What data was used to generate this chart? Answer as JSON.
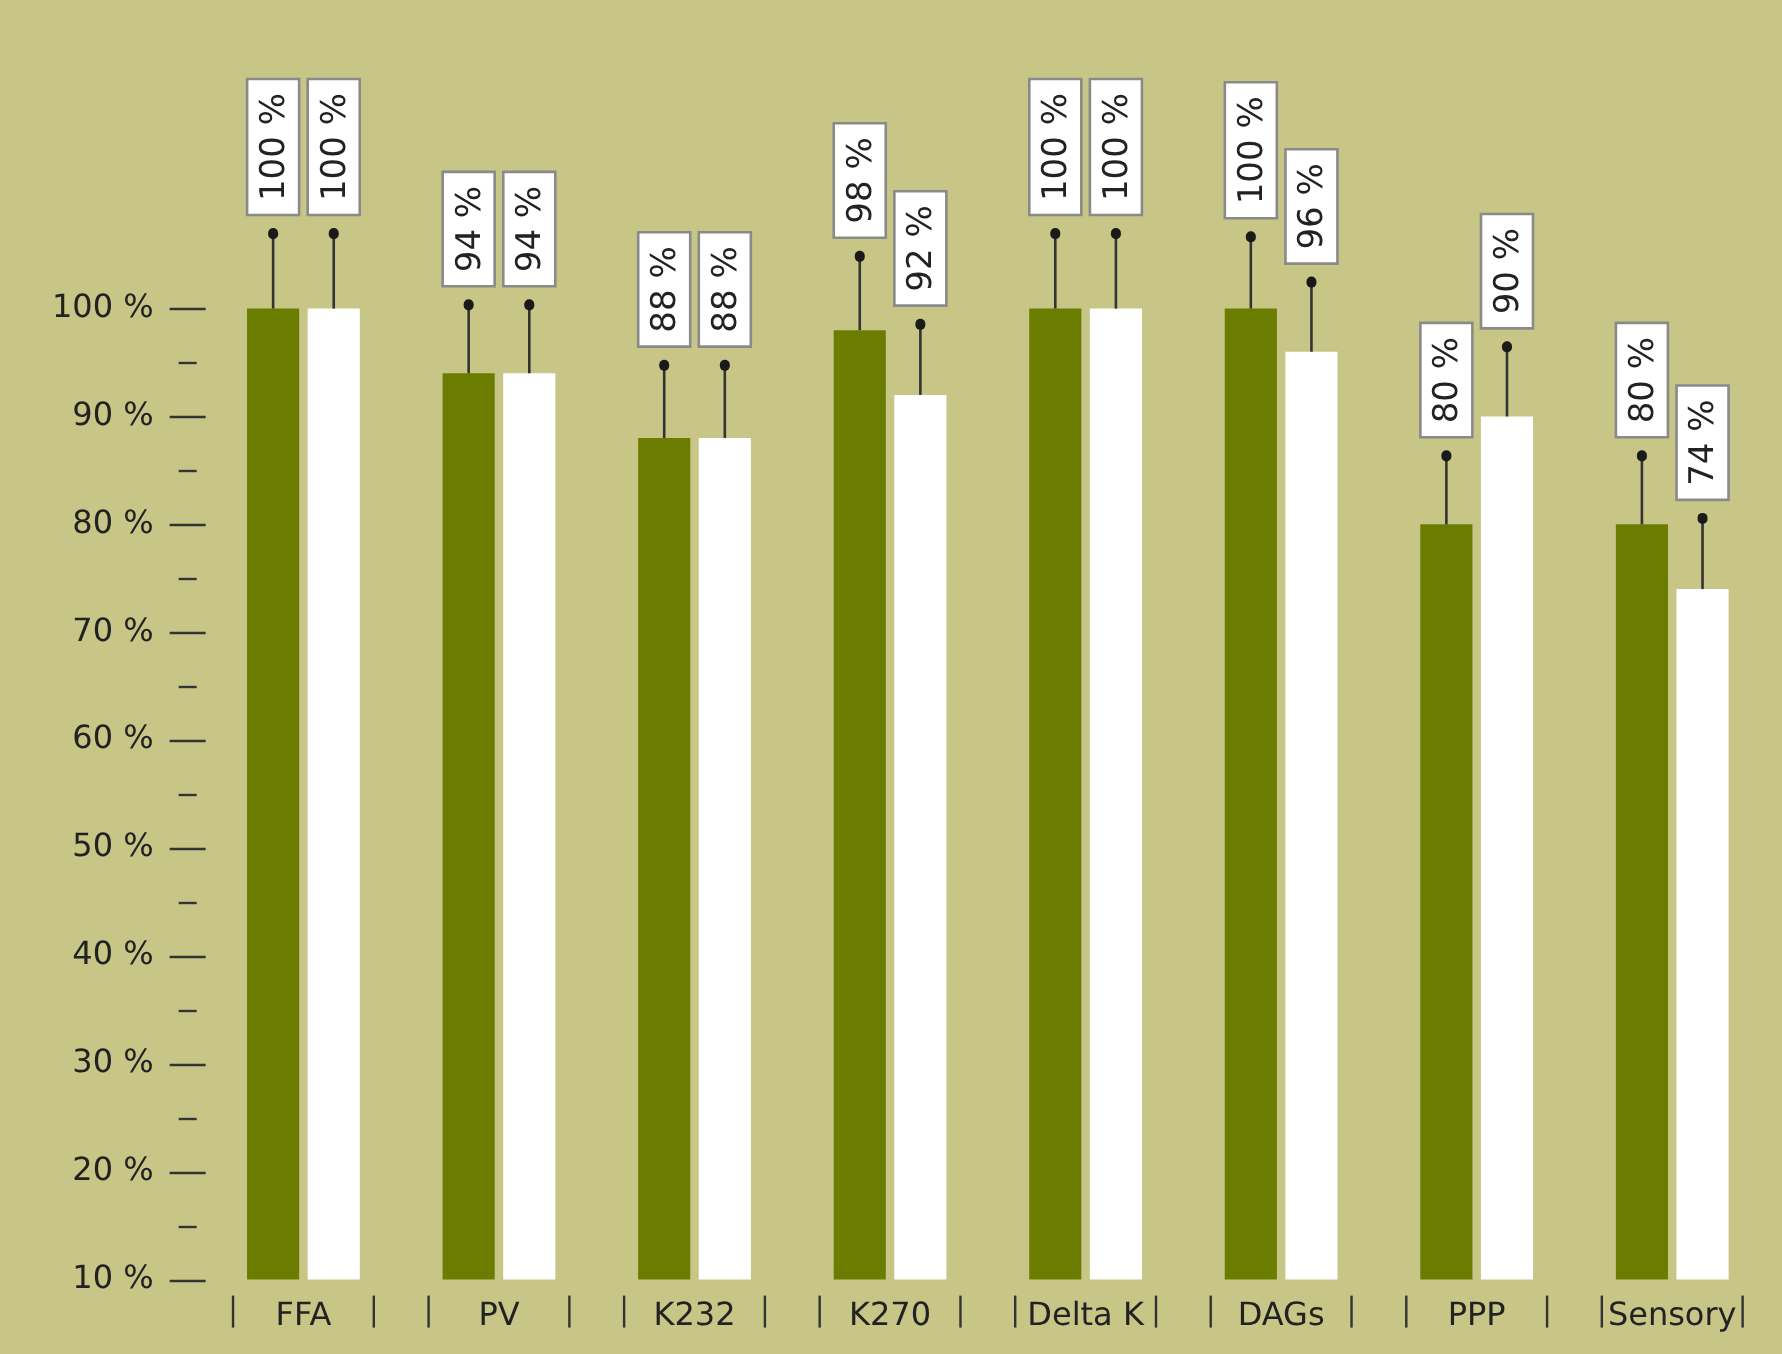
{
  "chart_data": {
    "type": "bar",
    "categories": [
      "FFA",
      "PV",
      "K232",
      "K270",
      "Delta K",
      "DAGs",
      "PPP",
      "Sensory"
    ],
    "series": [
      {
        "color": "#6b7d00",
        "values": [
          100,
          94,
          88,
          98,
          100,
          100,
          80,
          80
        ],
        "errors": [
          [
            100,
            107
          ],
          [
            94,
            100.4
          ],
          [
            88,
            94.8
          ],
          [
            98,
            104.9
          ],
          [
            100,
            107
          ],
          [
            100,
            106.7
          ],
          [
            80,
            86.4
          ],
          [
            80,
            86.4
          ]
        ],
        "value_labels": [
          "100 %",
          "94 %",
          "88 %",
          "98 %",
          "100 %",
          "100 %",
          "80 %",
          "80 %"
        ]
      },
      {
        "color": "#ffffff",
        "values": [
          100,
          94,
          88,
          92,
          100,
          96,
          90,
          74
        ],
        "errors": [
          [
            100,
            107
          ],
          [
            94,
            100.4
          ],
          [
            88,
            94.8
          ],
          [
            92,
            98.6
          ],
          [
            100,
            107
          ],
          [
            96,
            102.5
          ],
          [
            90,
            96.5
          ],
          [
            74,
            80.6
          ]
        ],
        "value_labels": [
          "100 %",
          "94 %",
          "88 %",
          "92 %",
          "100 %",
          "96 %",
          "90 %",
          "74 %"
        ]
      }
    ],
    "ylim": [
      10,
      122
    ],
    "yticks": [
      {
        "value": 10,
        "label": "10 %"
      },
      {
        "value": 15,
        "label": null
      },
      {
        "value": 20,
        "label": "20 %"
      },
      {
        "value": 25,
        "label": null
      },
      {
        "value": 30,
        "label": "30 %"
      },
      {
        "value": 35,
        "label": null
      },
      {
        "value": 40,
        "label": "40 %"
      },
      {
        "value": 45,
        "label": null
      },
      {
        "value": 50,
        "label": "50 %"
      },
      {
        "value": 55,
        "label": null
      },
      {
        "value": 60,
        "label": "60 %"
      },
      {
        "value": 65,
        "label": null
      },
      {
        "value": 70,
        "label": "70 %"
      },
      {
        "value": 75,
        "label": null
      },
      {
        "value": 80,
        "label": "80 %"
      },
      {
        "value": 85,
        "label": null
      },
      {
        "value": 90,
        "label": "90 %"
      },
      {
        "value": 95,
        "label": null
      },
      {
        "value": 100,
        "label": "100 %"
      }
    ],
    "grid": false,
    "legend": false
  }
}
